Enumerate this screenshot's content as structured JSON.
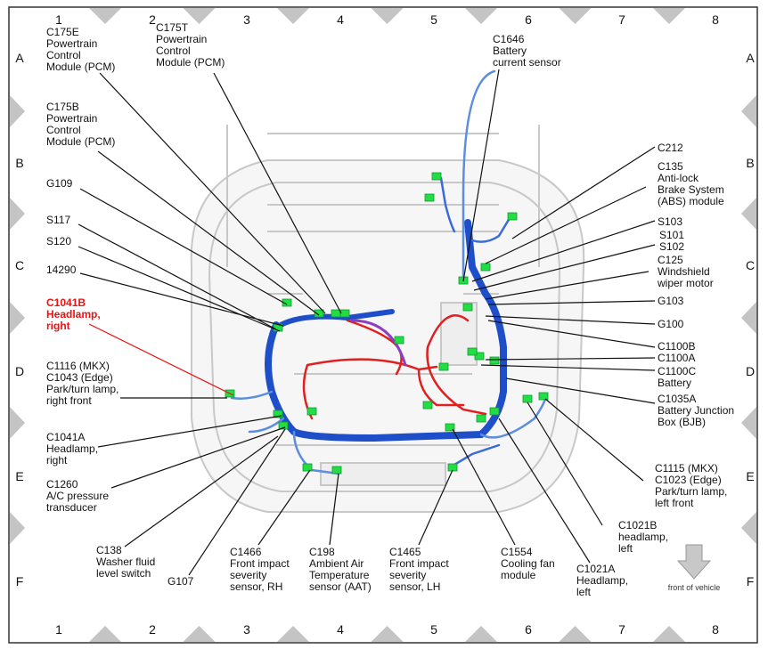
{
  "grid": {
    "columns": [
      "1",
      "2",
      "3",
      "4",
      "5",
      "6",
      "7",
      "8"
    ],
    "rows": [
      "A",
      "B",
      "C",
      "D",
      "E",
      "F"
    ]
  },
  "colors": {
    "highlight": "#ee1111",
    "harness_main": "#1f4fc8",
    "harness_power": "#e02020",
    "connector": "#22dd44",
    "vehicle_outline": "#c8c8c8"
  },
  "callouts": [
    {
      "lines": [
        "C175E",
        "Powertrain",
        "Control",
        "Module (PCM)"
      ]
    },
    {
      "lines": [
        "C175T",
        "Powertrain",
        "Control",
        "Module (PCM)"
      ]
    },
    {
      "lines": [
        "C175B",
        "Powertrain",
        "Control",
        "Module (PCM)"
      ]
    },
    {
      "lines": [
        "G109"
      ]
    },
    {
      "lines": [
        "S117"
      ]
    },
    {
      "lines": [
        "S120"
      ]
    },
    {
      "lines": [
        "14290"
      ]
    },
    {
      "lines": [
        "C1041B",
        "Headlamp,",
        "right"
      ],
      "highlight": true
    },
    {
      "lines": [
        "C1116 (MKX)",
        "C1043 (Edge)",
        "Park/turn lamp,",
        "right front"
      ]
    },
    {
      "lines": [
        "C1041A",
        "Headlamp,",
        "right"
      ]
    },
    {
      "lines": [
        "C1260",
        "A/C pressure",
        "transducer"
      ]
    },
    {
      "lines": [
        "C138",
        "Washer fluid",
        "level switch"
      ]
    },
    {
      "lines": [
        "G107"
      ]
    },
    {
      "lines": [
        "C1466",
        "Front impact",
        "severity",
        "sensor, RH"
      ]
    },
    {
      "lines": [
        "C198",
        "Ambient Air",
        "Temperature",
        "sensor (AAT)"
      ]
    },
    {
      "lines": [
        "C1465",
        "Front impact",
        "severity",
        "sensor, LH"
      ]
    },
    {
      "lines": [
        "C1554",
        "Cooling fan",
        "module"
      ]
    },
    {
      "lines": [
        "C1021A",
        "Headlamp,",
        "left"
      ]
    },
    {
      "lines": [
        "C1021B",
        "headlamp,",
        "left"
      ]
    },
    {
      "lines": [
        "C1115 (MKX)",
        "C1023 (Edge)",
        "Park/turn lamp,",
        "left front"
      ]
    },
    {
      "lines": [
        "C212"
      ]
    },
    {
      "lines": [
        "C135",
        "Anti-lock",
        "Brake System",
        "(ABS) module"
      ]
    },
    {
      "lines": [
        "S103"
      ]
    },
    {
      "lines": [
        "S101",
        "S102"
      ]
    },
    {
      "lines": [
        "C125",
        "Windshield",
        "wiper motor"
      ]
    },
    {
      "lines": [
        "G103"
      ]
    },
    {
      "lines": [
        "G100"
      ]
    },
    {
      "lines": [
        "C1100B"
      ]
    },
    {
      "lines": [
        "C1100A"
      ]
    },
    {
      "lines": [
        "C1100C",
        "Battery"
      ]
    },
    {
      "lines": [
        "C1035A",
        "Battery Junction",
        "Box (BJB)"
      ]
    },
    {
      "lines": [
        "C1646",
        "Battery",
        "current sensor"
      ]
    }
  ],
  "front_indicator": {
    "label": "front of vehicle",
    "icon": "arrow-down-icon"
  }
}
